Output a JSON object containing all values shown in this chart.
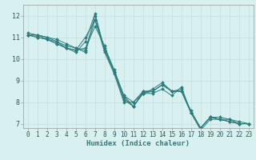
{
  "xlabel": "Humidex (Indice chaleur)",
  "bg_color": "#d8f0f0",
  "line_color": "#2e7d7d",
  "grid_color": "#c0e0e0",
  "xlim": [
    -0.5,
    23.5
  ],
  "ylim": [
    6.8,
    12.5
  ],
  "yticks": [
    7,
    8,
    9,
    10,
    11,
    12
  ],
  "xticks": [
    0,
    1,
    2,
    3,
    4,
    5,
    6,
    7,
    8,
    9,
    10,
    11,
    12,
    13,
    14,
    15,
    16,
    17,
    18,
    19,
    20,
    21,
    22,
    23
  ],
  "series": [
    [
      11.1,
      11.1,
      11.0,
      10.9,
      10.7,
      10.5,
      10.4,
      12.0,
      10.4,
      9.4,
      8.2,
      7.8,
      8.5,
      8.5,
      8.8,
      8.5,
      8.5,
      7.5,
      6.8,
      7.3,
      7.3,
      7.2,
      7.1,
      7.0
    ],
    [
      11.1,
      11.1,
      11.0,
      10.8,
      10.6,
      10.5,
      10.3,
      11.8,
      10.3,
      9.3,
      8.0,
      8.0,
      8.4,
      8.4,
      8.6,
      8.3,
      8.7,
      7.5,
      6.7,
      7.2,
      7.2,
      7.1,
      7.0,
      7.0
    ],
    [
      11.2,
      11.1,
      10.9,
      10.7,
      10.5,
      10.4,
      10.5,
      11.5,
      10.6,
      9.4,
      8.3,
      7.8,
      8.4,
      8.6,
      8.9,
      8.5,
      8.5,
      7.5,
      6.8,
      7.3,
      7.2,
      7.1,
      7.0,
      7.0
    ],
    [
      11.1,
      11.0,
      10.9,
      10.8,
      10.5,
      10.4,
      11.0,
      11.8,
      10.5,
      9.5,
      8.3,
      8.0,
      8.5,
      8.5,
      8.8,
      8.5,
      8.6,
      7.5,
      6.8,
      7.3,
      7.2,
      7.1,
      7.0,
      7.0
    ],
    [
      11.1,
      11.0,
      10.9,
      10.7,
      10.5,
      10.3,
      10.8,
      12.1,
      10.4,
      9.4,
      8.1,
      7.8,
      8.4,
      8.5,
      8.8,
      8.5,
      8.5,
      7.6,
      6.8,
      7.3,
      7.2,
      7.2,
      7.0,
      7.0
    ]
  ],
  "tick_fontsize": 5.5,
  "xlabel_fontsize": 6.5,
  "tick_color": "#2e5555"
}
